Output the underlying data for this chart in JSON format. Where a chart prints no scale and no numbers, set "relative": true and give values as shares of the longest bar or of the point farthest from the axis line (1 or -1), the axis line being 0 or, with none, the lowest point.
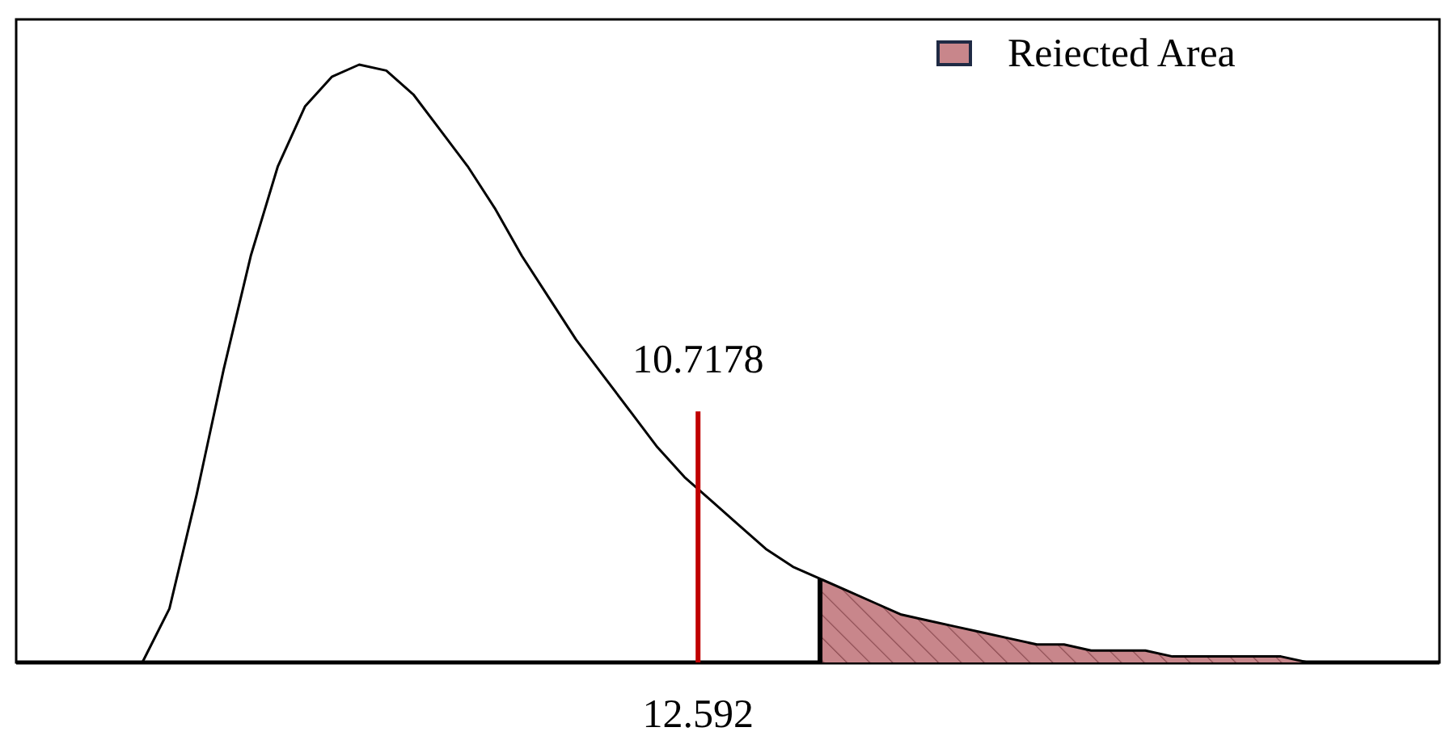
{
  "chart_data": {
    "type": "line",
    "relative": true,
    "legend": "top right",
    "categories": [
      null,
      null,
      null,
      null,
      null,
      null,
      null,
      null,
      null,
      null,
      null,
      null,
      null,
      null,
      null,
      null,
      null,
      null,
      null,
      null,
      null,
      null,
      null,
      null,
      null,
      null,
      null,
      null,
      null,
      null,
      null,
      null,
      null,
      null,
      null,
      null,
      null,
      null,
      null,
      null,
      null,
      null,
      null,
      null,
      null,
      null,
      null
    ],
    "series": [
      {
        "color": "#000000",
        "values": [
          0,
          0.09,
          0.28,
          0.49,
          0.68,
          0.83,
          0.93,
          0.98,
          1,
          0.99,
          0.95,
          0.89,
          0.83,
          0.76,
          0.68,
          0.61,
          0.54,
          0.48,
          0.42,
          0.36,
          0.31,
          0.27,
          0.23,
          0.19,
          0.16,
          0.14,
          0.12,
          0.1,
          0.08,
          0.07,
          0.06,
          0.05,
          0.04,
          0.03,
          0.03,
          0.02,
          0.02,
          0.02,
          0.01,
          0.01,
          0.01,
          0.01,
          0.01,
          0,
          0,
          0,
          0
        ]
      },
      {
        "type": "area",
        "name": "Reiected Area",
        "color": "#c8868b",
        "values": [
          null,
          null,
          null,
          null,
          null,
          null,
          null,
          null,
          null,
          null,
          null,
          null,
          null,
          null,
          null,
          null,
          null,
          null,
          null,
          null,
          null,
          null,
          null,
          null,
          null,
          0.14,
          0.12,
          0.1,
          0.08,
          0.07,
          0.06,
          0.05,
          0.04,
          0.03,
          0.03,
          0.02,
          0.02,
          0.02,
          0.01,
          0.01,
          0.01,
          0.01,
          0.01,
          0,
          0,
          0,
          0
        ]
      }
    ],
    "annotations": [
      "10.7178",
      "12.592"
    ]
  }
}
